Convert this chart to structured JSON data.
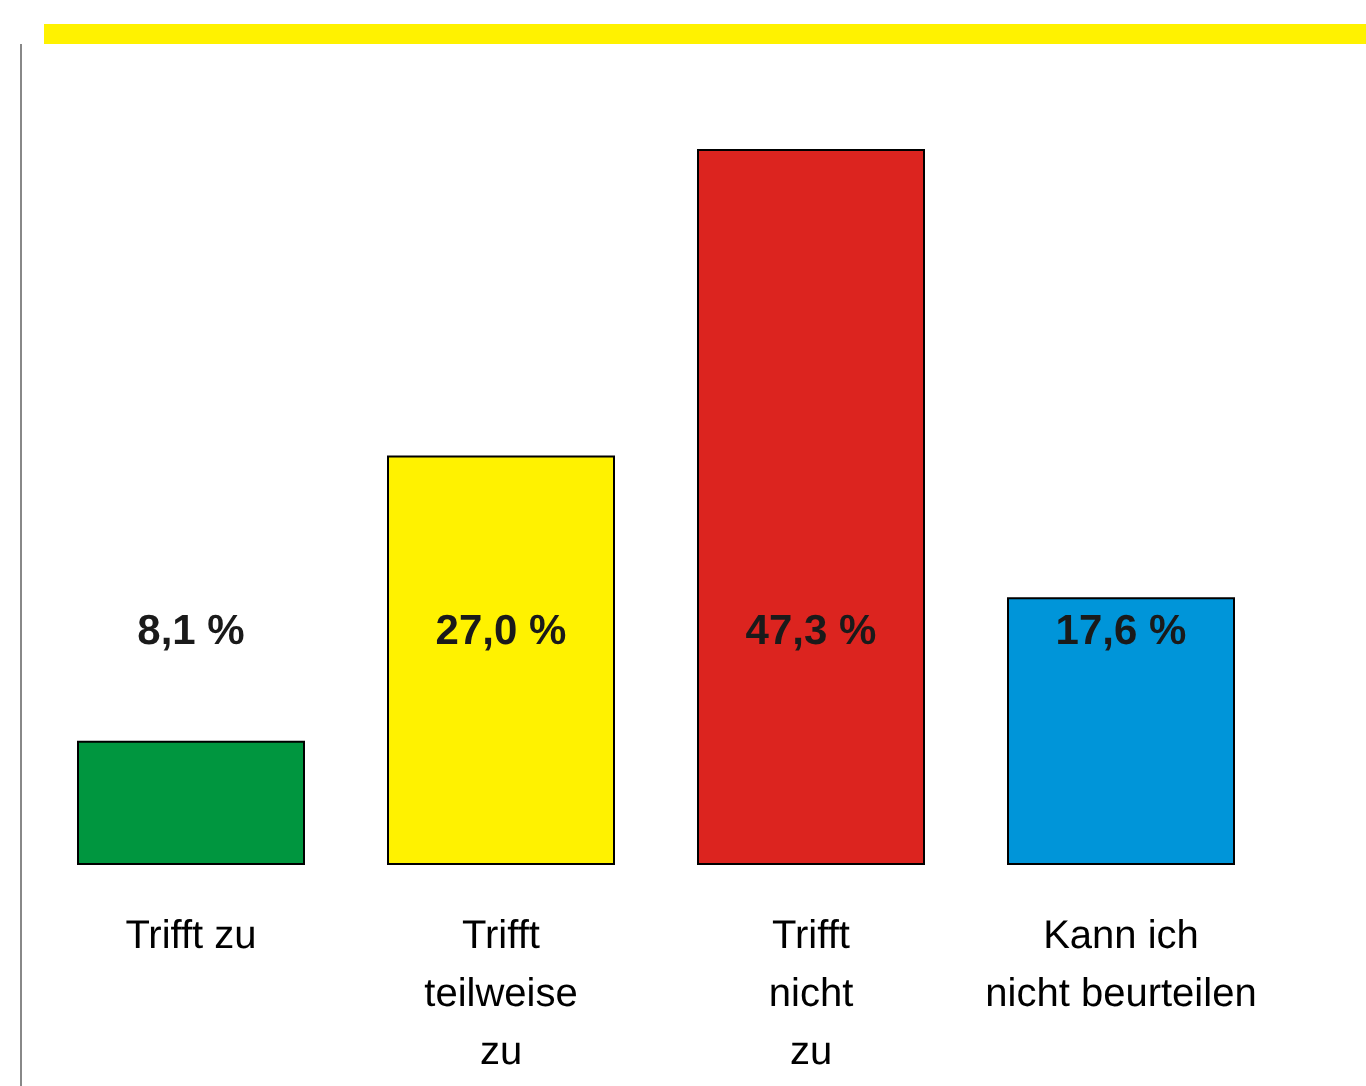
{
  "chart_data": {
    "type": "bar",
    "categories": [
      "Trifft zu",
      "Trifft\nteilweise\nzu",
      "Trifft\nnicht\nzu",
      "Kann ich\nnicht beurteilen"
    ],
    "values": [
      8.1,
      27.0,
      47.3,
      17.6
    ],
    "colors": [
      "#00963f",
      "#fff200",
      "#dc241f",
      "#0095d9"
    ],
    "value_labels": [
      "8,1 %",
      "27,0 %",
      "47,3 %",
      "17,6 %"
    ],
    "grid": false,
    "legend": false
  }
}
